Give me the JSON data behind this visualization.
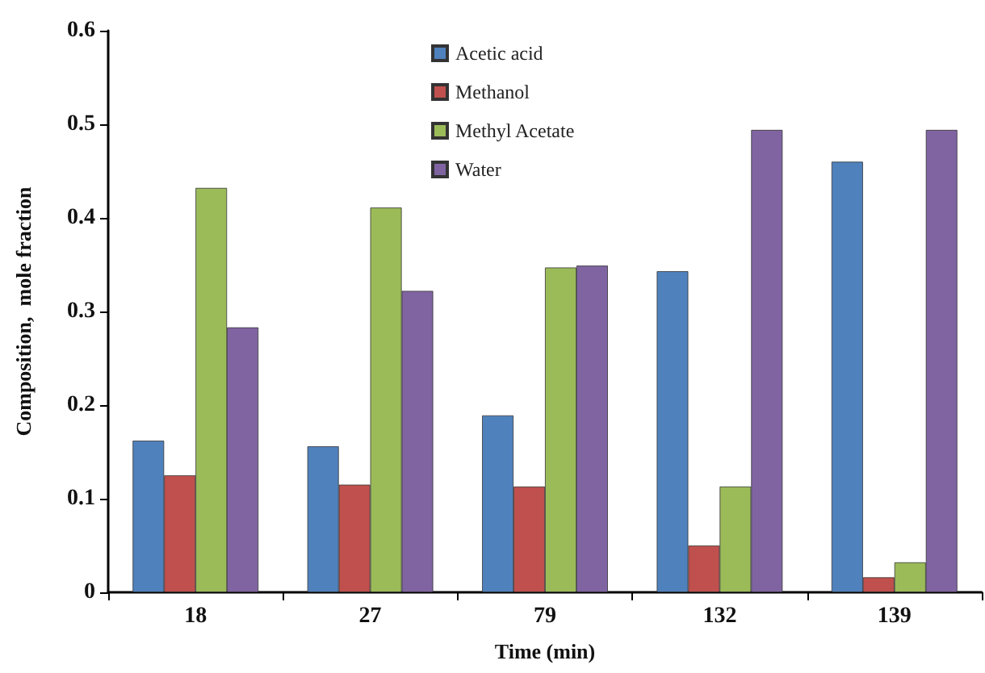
{
  "chart_data": {
    "type": "bar",
    "xlabel": "Time (min)",
    "ylabel": "Composition,  mole fraction",
    "categories": [
      "18",
      "27",
      "79",
      "132",
      "139"
    ],
    "series": [
      {
        "name": "Acetic acid",
        "color": "#4f81bd",
        "values": [
          0.162,
          0.156,
          0.189,
          0.343,
          0.46
        ]
      },
      {
        "name": "Methanol",
        "color": "#c0504d",
        "values": [
          0.125,
          0.115,
          0.113,
          0.05,
          0.016
        ]
      },
      {
        "name": "Methyl Acetate",
        "color": "#9bbb59",
        "values": [
          0.432,
          0.411,
          0.347,
          0.113,
          0.032
        ]
      },
      {
        "name": "Water",
        "color": "#8064a2",
        "values": [
          0.283,
          0.322,
          0.349,
          0.494,
          0.494
        ]
      }
    ],
    "ylim": [
      0,
      0.6
    ],
    "yticks": [
      0,
      0.1,
      0.2,
      0.3,
      0.4,
      0.5,
      0.6
    ],
    "grid": false,
    "legend": "top"
  }
}
